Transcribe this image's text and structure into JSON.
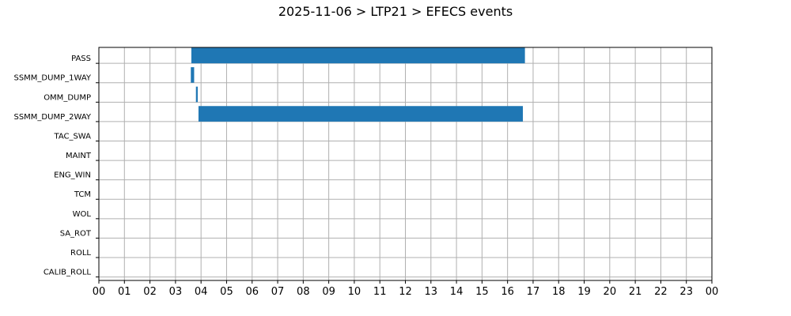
{
  "title": "2025-11-06 > LTP21 > EFECS events",
  "chart_data": {
    "type": "bar",
    "orientation": "horizontal-timeline",
    "title": "2025-11-06 > LTP21 > EFECS events",
    "xlabel": "",
    "ylabel": "",
    "xlim": [
      0,
      24
    ],
    "x_tick_labels": [
      "00",
      "01",
      "02",
      "03",
      "04",
      "05",
      "06",
      "07",
      "08",
      "09",
      "10",
      "11",
      "12",
      "13",
      "14",
      "15",
      "16",
      "17",
      "18",
      "19",
      "20",
      "21",
      "22",
      "23",
      "00"
    ],
    "categories": [
      "PASS",
      "SSMM_DUMP_1WAY",
      "OMM_DUMP",
      "SSMM_DUMP_2WAY",
      "TAC_SWA",
      "MAINT",
      "ENG_WIN",
      "TCM",
      "WOL",
      "SA_ROT",
      "ROLL",
      "CALIB_ROLL"
    ],
    "intervals": [
      {
        "category": "PASS",
        "start": 3.62,
        "end": 16.68
      },
      {
        "category": "SSMM_DUMP_1WAY",
        "start": 3.6,
        "end": 3.73
      },
      {
        "category": "OMM_DUMP",
        "start": 3.8,
        "end": 3.87
      },
      {
        "category": "SSMM_DUMP_2WAY",
        "start": 3.9,
        "end": 16.6
      }
    ],
    "color": "#1f77b4",
    "grid": true
  }
}
